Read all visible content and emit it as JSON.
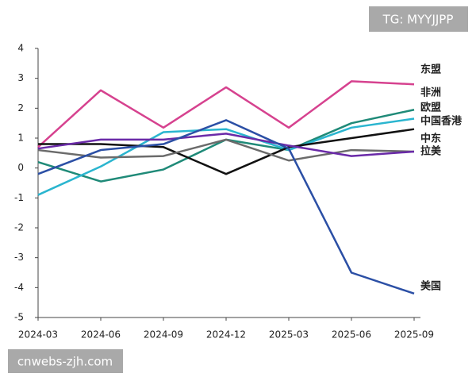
{
  "watermarks": {
    "top": "TG: MYYJJPP",
    "bottom": "cnwebs-zjh.com"
  },
  "chart_data": {
    "type": "line",
    "x": [
      "2024-03",
      "2024-06",
      "2024-09",
      "2024-12",
      "2025-03",
      "2025-06",
      "2025-09"
    ],
    "ylim": [
      -5,
      4
    ],
    "yticks": [
      -5,
      -4,
      -3,
      -2,
      -1,
      0,
      1,
      2,
      3,
      4
    ],
    "grid": false,
    "series": [
      {
        "name": "东盟",
        "color": "#d6428f",
        "values": [
          0.7,
          2.6,
          1.35,
          2.7,
          1.35,
          2.9,
          2.8
        ]
      },
      {
        "name": "非洲",
        "color": "#1f8a78",
        "values": [
          0.2,
          -0.45,
          -0.05,
          0.95,
          0.6,
          1.5,
          1.95
        ]
      },
      {
        "name": "欧盟",
        "color": "#2ab5cf",
        "values": [
          -0.9,
          0.05,
          1.2,
          1.3,
          0.6,
          1.35,
          1.65
        ]
      },
      {
        "name": "中国香港",
        "color": "#111111",
        "values": [
          0.8,
          0.8,
          0.7,
          -0.2,
          0.7,
          1.0,
          1.3
        ]
      },
      {
        "name": "中东",
        "color": "#6b6b6b",
        "values": [
          0.6,
          0.35,
          0.4,
          0.95,
          0.25,
          0.6,
          0.55
        ]
      },
      {
        "name": "拉美",
        "color": "#6a2aa8",
        "values": [
          0.65,
          0.95,
          0.95,
          1.15,
          0.75,
          0.4,
          0.55
        ]
      },
      {
        "name": "美国",
        "color": "#2b4fa5",
        "values": [
          -0.2,
          0.6,
          0.8,
          1.6,
          0.65,
          -3.5,
          -4.2
        ]
      }
    ]
  }
}
